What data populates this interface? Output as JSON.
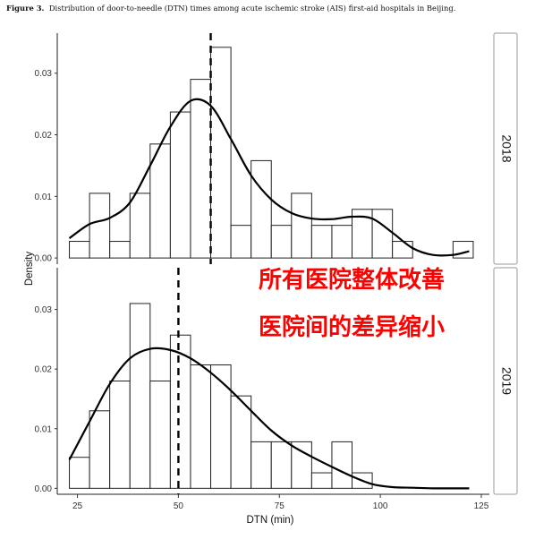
{
  "caption": {
    "label": "Figure 3.",
    "text": "Distribution of door-to-needle (DTN) times among acute ischemic stroke (AIS) first-aid hospitals in Beijing."
  },
  "annotation": {
    "line1": "所有医院整体改善",
    "line2": "医院间的差异缩小"
  },
  "chart_data": {
    "type": "histogram",
    "xlabel": "DTN (min)",
    "ylabel": "Density",
    "xlim": [
      20,
      127
    ],
    "x_ticks": [
      25,
      50,
      75,
      100,
      125
    ],
    "y_ticks": [
      0.0,
      0.01,
      0.02,
      0.03
    ],
    "y_tick_labels": [
      "0.00",
      "0.01",
      "0.02",
      "0.03"
    ],
    "grid": false,
    "bin_width": 5,
    "facets": [
      {
        "name": "2018",
        "ylim": [
          -0.001,
          0.0365
        ],
        "median_line_x": 58,
        "bins": [
          {
            "start": 23,
            "density": 0.0027
          },
          {
            "start": 28,
            "density": 0.0105
          },
          {
            "start": 33,
            "density": 0.0027
          },
          {
            "start": 38,
            "density": 0.0105
          },
          {
            "start": 43,
            "density": 0.0185
          },
          {
            "start": 48,
            "density": 0.0237
          },
          {
            "start": 53,
            "density": 0.029
          },
          {
            "start": 58,
            "density": 0.0342
          },
          {
            "start": 63,
            "density": 0.0053
          },
          {
            "start": 68,
            "density": 0.0158
          },
          {
            "start": 73,
            "density": 0.0053
          },
          {
            "start": 78,
            "density": 0.0105
          },
          {
            "start": 83,
            "density": 0.0053
          },
          {
            "start": 88,
            "density": 0.0053
          },
          {
            "start": 93,
            "density": 0.0079
          },
          {
            "start": 98,
            "density": 0.0079
          },
          {
            "start": 103,
            "density": 0.0027
          },
          {
            "start": 108,
            "density": 0.0
          },
          {
            "start": 113,
            "density": 0.0
          },
          {
            "start": 118,
            "density": 0.0027
          }
        ],
        "density_curve": {
          "x": [
            23,
            28,
            33,
            38,
            43,
            48,
            53,
            58,
            63,
            68,
            73,
            78,
            83,
            88,
            93,
            98,
            103,
            108,
            113,
            118,
            122
          ],
          "y": [
            0.0032,
            0.0055,
            0.0065,
            0.009,
            0.015,
            0.0213,
            0.0255,
            0.0247,
            0.0193,
            0.0134,
            0.0095,
            0.0073,
            0.0064,
            0.0063,
            0.0067,
            0.0064,
            0.0041,
            0.0016,
            0.0005,
            0.0005,
            0.0011
          ]
        }
      },
      {
        "name": "2019",
        "ylim": [
          -0.001,
          0.037
        ],
        "median_line_x": 50,
        "bins": [
          {
            "start": 23,
            "density": 0.0052
          },
          {
            "start": 28,
            "density": 0.013
          },
          {
            "start": 33,
            "density": 0.018
          },
          {
            "start": 38,
            "density": 0.031
          },
          {
            "start": 43,
            "density": 0.018
          },
          {
            "start": 48,
            "density": 0.0257
          },
          {
            "start": 53,
            "density": 0.0207
          },
          {
            "start": 58,
            "density": 0.0207
          },
          {
            "start": 63,
            "density": 0.0155
          },
          {
            "start": 68,
            "density": 0.0078
          },
          {
            "start": 73,
            "density": 0.0078
          },
          {
            "start": 78,
            "density": 0.0078
          },
          {
            "start": 83,
            "density": 0.0026
          },
          {
            "start": 88,
            "density": 0.0078
          },
          {
            "start": 93,
            "density": 0.0026
          }
        ],
        "density_curve": {
          "x": [
            23,
            28,
            33,
            38,
            43,
            48,
            53,
            58,
            63,
            68,
            73,
            78,
            83,
            88,
            93,
            98,
            103,
            108,
            113,
            118,
            122
          ],
          "y": [
            0.0048,
            0.0112,
            0.0175,
            0.0218,
            0.0234,
            0.0232,
            0.0218,
            0.0194,
            0.0164,
            0.013,
            0.0097,
            0.0072,
            0.0053,
            0.0036,
            0.002,
            0.0007,
            0.0002,
            0.0001,
            0.0,
            0.0,
            0.0
          ]
        }
      }
    ]
  }
}
